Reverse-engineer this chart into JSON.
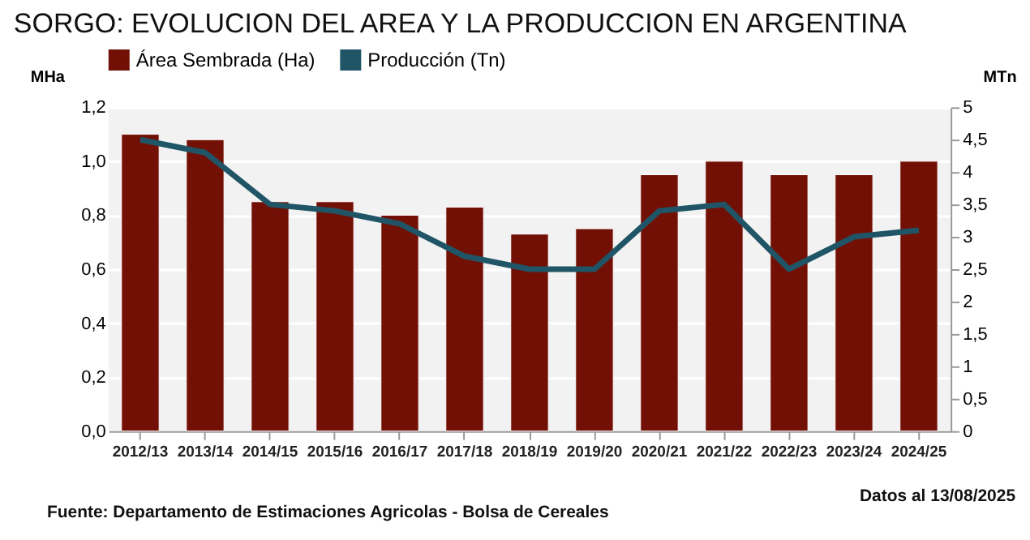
{
  "chart_data": {
    "type": "bar",
    "title": "SORGO: EVOLUCION DEL AREA Y LA PRODUCCION EN ARGENTINA",
    "categories": [
      "2012/13",
      "2013/14",
      "2014/15",
      "2015/16",
      "2016/17",
      "2017/18",
      "2018/19",
      "2019/20",
      "2020/21",
      "2021/22",
      "2022/23",
      "2023/24",
      "2024/25"
    ],
    "series": [
      {
        "name": "Área Sembrada (Ha)",
        "color": "#731005",
        "values": [
          1.1,
          1.08,
          0.85,
          0.85,
          0.8,
          0.83,
          0.73,
          0.75,
          0.95,
          1.0,
          0.95,
          0.95,
          1.0
        ]
      },
      {
        "name": "Producción (Tn)",
        "type": "line",
        "axis": "y2",
        "color": "#1f5566",
        "values": [
          4.5,
          4.3,
          3.5,
          3.4,
          3.2,
          2.7,
          2.5,
          2.5,
          3.4,
          3.5,
          2.5,
          3.0,
          3.1
        ]
      }
    ],
    "ylabel": "MHa",
    "y2label": "MTn",
    "ylim": [
      0,
      1.2
    ],
    "yticks": [
      {
        "value": 0,
        "label": "0,0"
      },
      {
        "value": 0.2,
        "label": "0,2"
      },
      {
        "value": 0.4,
        "label": "0,4"
      },
      {
        "value": 0.6,
        "label": "0,6"
      },
      {
        "value": 0.8,
        "label": "0,8"
      },
      {
        "value": 1.0,
        "label": "1,0"
      },
      {
        "value": 1.2,
        "label": "1,2"
      }
    ],
    "y2lim": [
      0,
      5
    ],
    "y2ticks": [
      0,
      {
        "value": 0.5,
        "label": "0,5"
      },
      1,
      {
        "value": 1.5,
        "label": "1,5"
      },
      2,
      {
        "value": 2.5,
        "label": "2,5"
      },
      3,
      {
        "value": 3.5,
        "label": "3,5"
      },
      4,
      {
        "value": 4.5,
        "label": "4,5"
      },
      5
    ],
    "grid": "y",
    "legend": "top",
    "marker": "none",
    "line_style": "solid",
    "annotations": [
      "Fuente: Departamento de Estimaciones Agricolas - Bolsa de Cereales",
      "Datos al 13/08/2025"
    ]
  }
}
